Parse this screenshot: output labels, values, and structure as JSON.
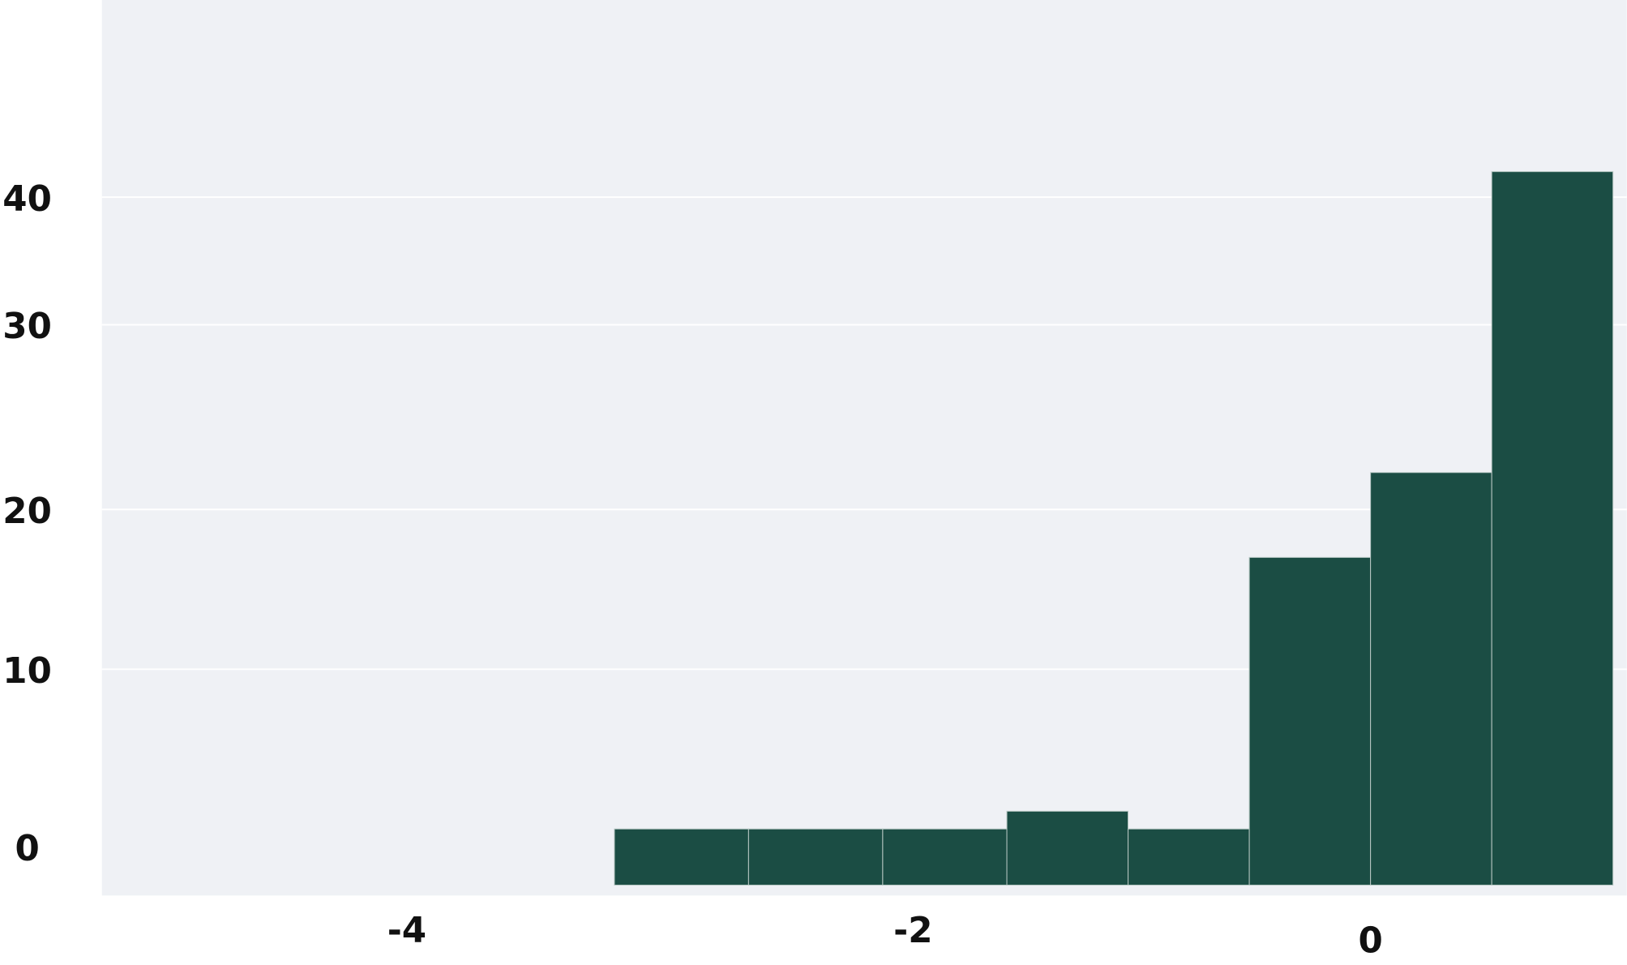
{
  "chart_data": {
    "type": "histogram",
    "title": "",
    "xlabel": "",
    "ylabel": "",
    "bin_edges": [
      -3.18,
      -2.65,
      -2.12,
      -1.59,
      -1.06,
      -0.53,
      0.0,
      0.53,
      1.06
    ],
    "counts": [
      1,
      1,
      1,
      2,
      1,
      17,
      22,
      42
    ],
    "x_ticks": [
      -4,
      -2,
      0
    ],
    "x_tick_labels": [
      "-4",
      "-2",
      "0"
    ],
    "y_ticks": [
      0,
      10,
      20,
      30,
      40
    ],
    "y_tick_labels": [
      "0",
      "10",
      "20",
      "30",
      "40"
    ],
    "grid": "horizontal",
    "legend": "none",
    "colors": {
      "bar": "#1b4d44",
      "bar_edge": "#b8c8c4",
      "background": "#eff1f5",
      "grid": "#ffffff"
    }
  }
}
